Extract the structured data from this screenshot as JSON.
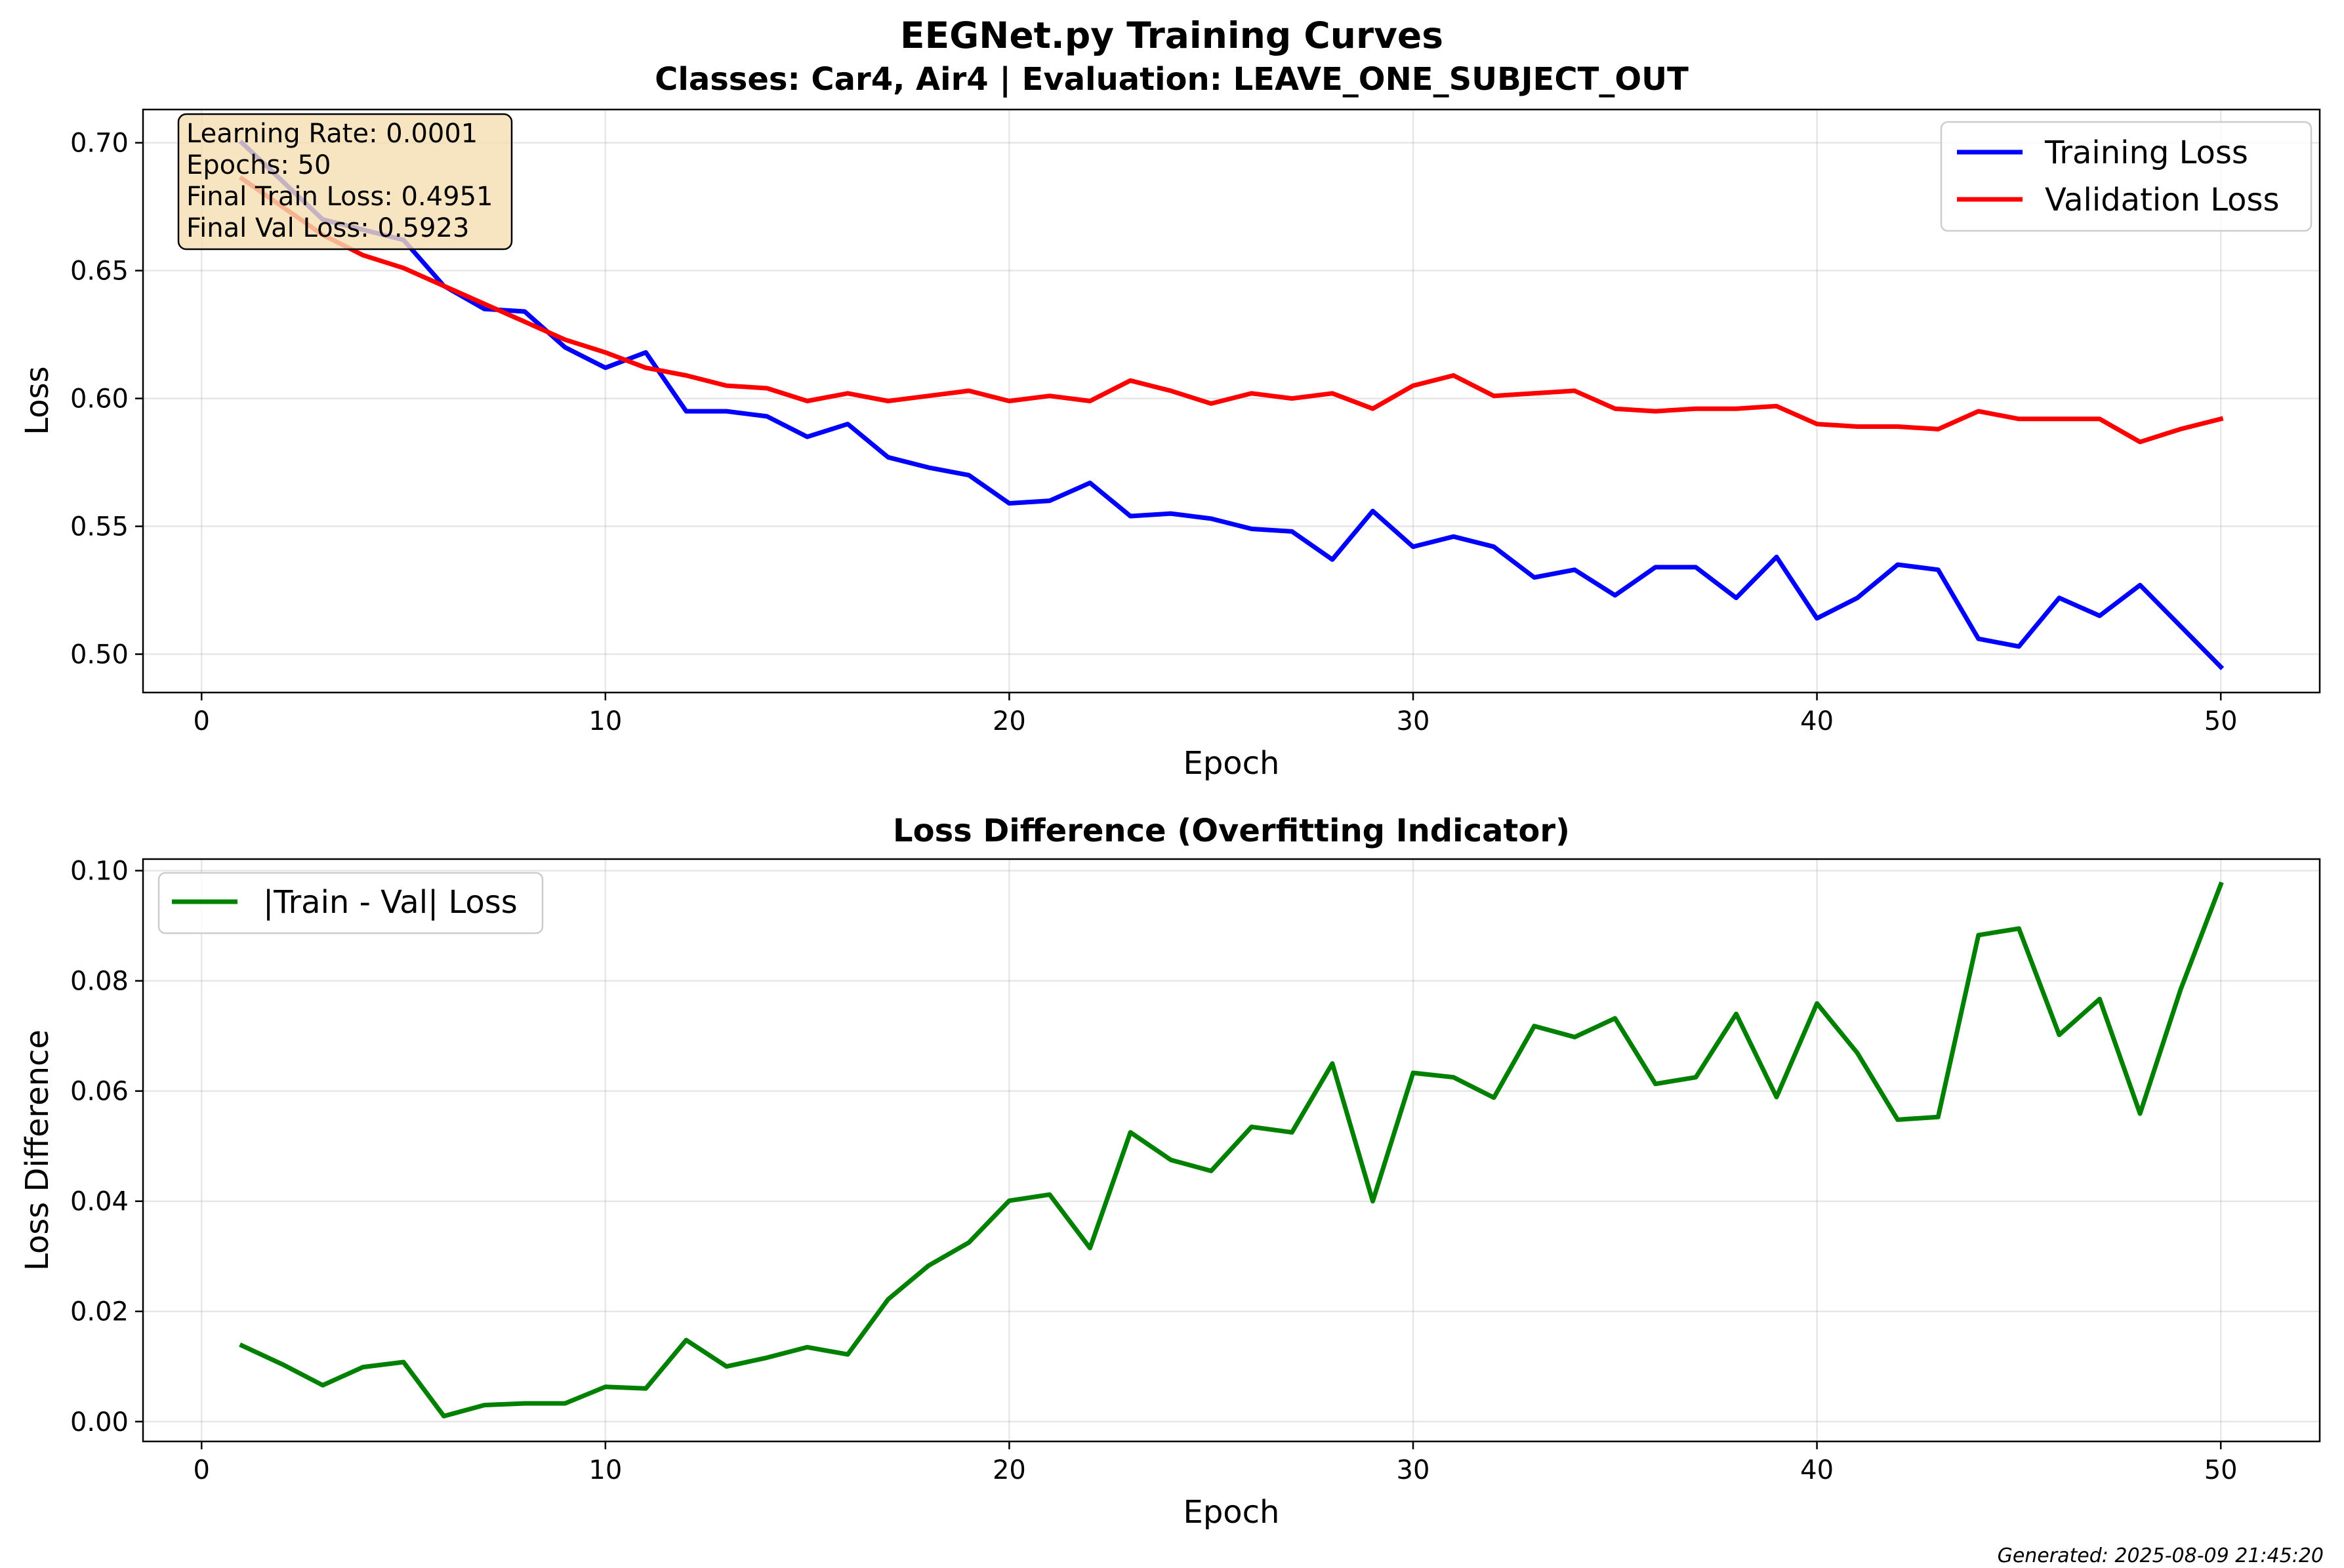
{
  "title": {
    "line1": "EEGNet.py Training Curves",
    "line2": "Classes: Car4, Air4 | Evaluation: LEAVE_ONE_SUBJECT_OUT"
  },
  "info_box": {
    "lines": [
      "Learning Rate: 0.0001",
      "Epochs: 50",
      "Final Train Loss: 0.4951",
      "Final Val Loss: 0.5923"
    ],
    "background": "#f5deb3"
  },
  "footer": {
    "generated": "Generated: 2025-08-09 21:45:20"
  },
  "chart_data": [
    {
      "type": "line",
      "title": "",
      "xlabel": "Epoch",
      "ylabel": "Loss",
      "xlim": [
        -1.45,
        52.45
      ],
      "ylim": [
        0.485,
        0.713
      ],
      "xticks": [
        0,
        10,
        20,
        30,
        40,
        50
      ],
      "yticks": [
        0.5,
        0.55,
        0.6,
        0.65,
        0.7
      ],
      "ytick_labels": [
        "0.50",
        "0.55",
        "0.60",
        "0.65",
        "0.70"
      ],
      "grid": true,
      "legend_position": "top-right",
      "x": [
        1,
        2,
        3,
        4,
        5,
        6,
        7,
        8,
        9,
        10,
        11,
        12,
        13,
        14,
        15,
        16,
        17,
        18,
        19,
        20,
        21,
        22,
        23,
        24,
        25,
        26,
        27,
        28,
        29,
        30,
        31,
        32,
        33,
        34,
        35,
        36,
        37,
        38,
        39,
        40,
        41,
        42,
        43,
        44,
        45,
        46,
        47,
        48,
        49,
        50
      ],
      "series": [
        {
          "name": "Training Loss",
          "color": "#0000ff",
          "values": [
            0.7,
            0.685,
            0.67,
            0.666,
            0.662,
            0.644,
            0.635,
            0.634,
            0.62,
            0.612,
            0.618,
            0.595,
            0.595,
            0.593,
            0.585,
            0.59,
            0.577,
            0.573,
            0.57,
            0.559,
            0.56,
            0.567,
            0.554,
            0.555,
            0.553,
            0.549,
            0.548,
            0.537,
            0.556,
            0.542,
            0.546,
            0.542,
            0.53,
            0.533,
            0.523,
            0.534,
            0.534,
            0.522,
            0.538,
            0.514,
            0.522,
            0.535,
            0.533,
            0.506,
            0.503,
            0.522,
            0.515,
            0.527,
            0.511,
            0.495
          ]
        },
        {
          "name": "Validation Loss",
          "color": "#ff0000",
          "values": [
            0.686,
            0.675,
            0.664,
            0.656,
            0.651,
            0.644,
            0.637,
            0.63,
            0.623,
            0.618,
            0.612,
            0.609,
            0.605,
            0.604,
            0.599,
            0.602,
            0.599,
            0.601,
            0.603,
            0.599,
            0.601,
            0.599,
            0.607,
            0.603,
            0.598,
            0.602,
            0.6,
            0.602,
            0.596,
            0.605,
            0.609,
            0.601,
            0.602,
            0.603,
            0.596,
            0.595,
            0.596,
            0.596,
            0.597,
            0.59,
            0.589,
            0.589,
            0.588,
            0.595,
            0.592,
            0.592,
            0.592,
            0.583,
            0.588,
            0.592
          ]
        }
      ]
    },
    {
      "type": "line",
      "title": "Loss Difference (Overfitting Indicator)",
      "xlabel": "Epoch",
      "ylabel": "Loss Difference",
      "xlim": [
        -1.45,
        52.45
      ],
      "ylim": [
        -0.0036,
        0.1021
      ],
      "xticks": [
        0,
        10,
        20,
        30,
        40,
        50
      ],
      "yticks": [
        0.0,
        0.02,
        0.04,
        0.06,
        0.08,
        0.1
      ],
      "ytick_labels": [
        "0.00",
        "0.02",
        "0.04",
        "0.06",
        "0.08",
        "0.10"
      ],
      "grid": true,
      "legend_position": "top-left",
      "x": [
        1,
        2,
        3,
        4,
        5,
        6,
        7,
        8,
        9,
        10,
        11,
        12,
        13,
        14,
        15,
        16,
        17,
        18,
        19,
        20,
        21,
        22,
        23,
        24,
        25,
        26,
        27,
        28,
        29,
        30,
        31,
        32,
        33,
        34,
        35,
        36,
        37,
        38,
        39,
        40,
        41,
        42,
        43,
        44,
        45,
        46,
        47,
        48,
        49,
        50
      ],
      "series": [
        {
          "name": "|Train - Val| Loss",
          "color": "#008000",
          "values": [
            0.0138,
            0.0104,
            0.0066,
            0.0099,
            0.0108,
            0.001,
            0.003,
            0.0033,
            0.0033,
            0.0063,
            0.006,
            0.0148,
            0.01,
            0.0116,
            0.0135,
            0.0122,
            0.0222,
            0.0283,
            0.0325,
            0.0401,
            0.0412,
            0.0315,
            0.0525,
            0.0475,
            0.0455,
            0.0535,
            0.0525,
            0.065,
            0.04,
            0.0633,
            0.0625,
            0.0588,
            0.0718,
            0.0698,
            0.0732,
            0.0613,
            0.0625,
            0.074,
            0.0589,
            0.0759,
            0.0669,
            0.0548,
            0.0553,
            0.0883,
            0.0895,
            0.0702,
            0.0767,
            0.0559,
            0.0783,
            0.0975
          ]
        }
      ]
    }
  ]
}
